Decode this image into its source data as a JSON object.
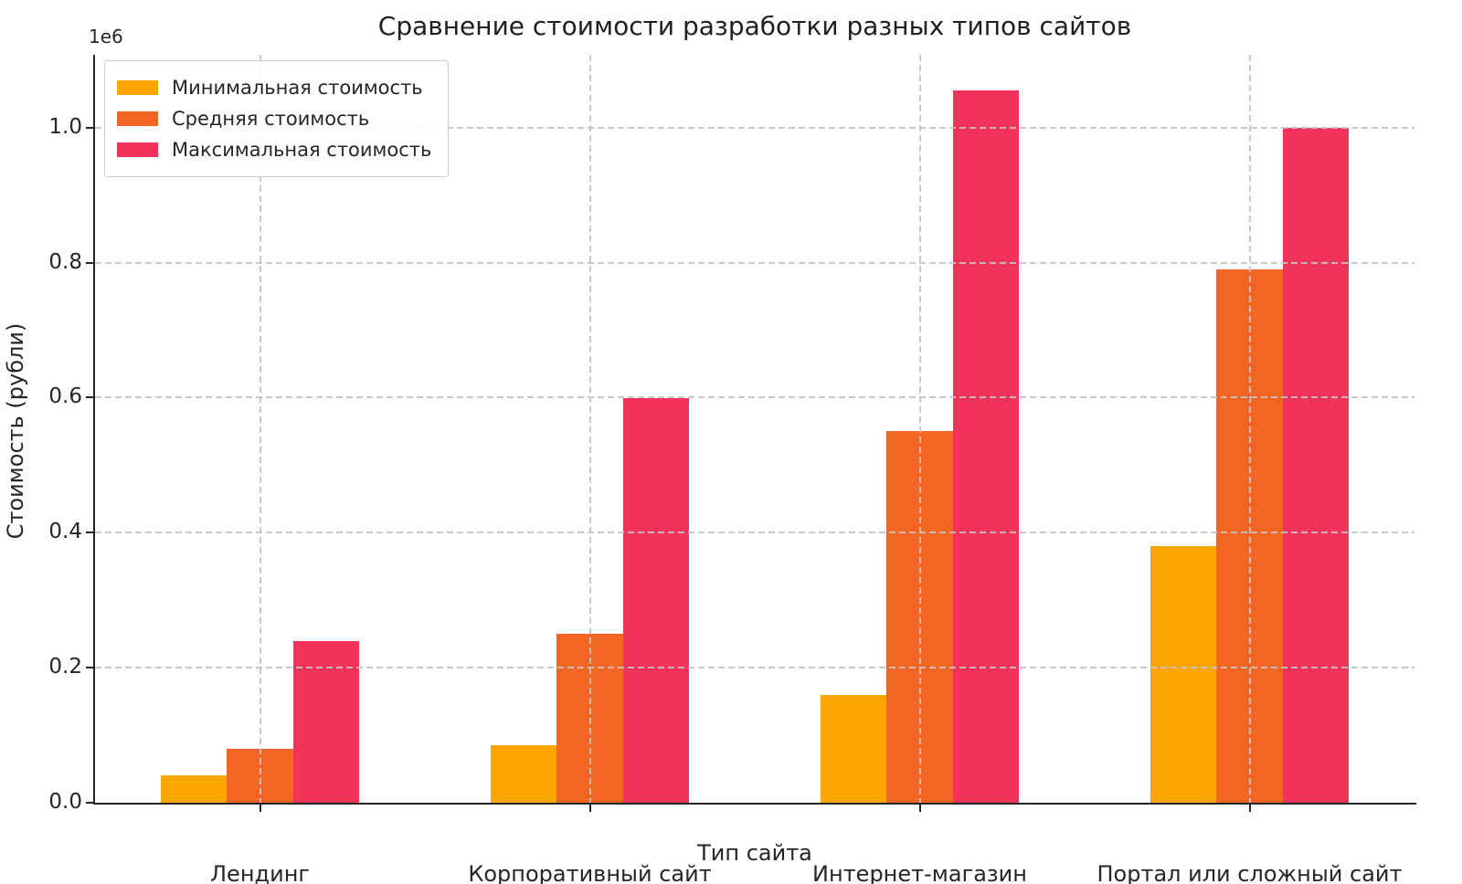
{
  "chart_data": {
    "type": "bar",
    "title": "Сравнение стоимости разработки разных типов сайтов",
    "xlabel": "Тип сайта",
    "ylabel": "Стоимость (рубли)",
    "y_offset_text": "1e6",
    "categories": [
      "Лендинг",
      "Корпоративный сайт",
      "Интернет-магазин",
      "Портал или сложный сайт"
    ],
    "series": [
      {
        "key": "min",
        "name": "Минимальная стоимость",
        "color": "#FFA500",
        "values": [
          40000,
          85000,
          160000,
          380000
        ]
      },
      {
        "key": "avg",
        "name": "Средняя стоимость",
        "color": "#F26522",
        "values": [
          80000,
          250000,
          550000,
          790000
        ]
      },
      {
        "key": "max",
        "name": "Максимальная стоимость",
        "color": "#F3335A",
        "values": [
          240000,
          600000,
          1055000,
          1000000
        ]
      }
    ],
    "ytick_values": [
      0,
      200000,
      400000,
      600000,
      800000,
      1000000
    ],
    "ytick_labels": [
      "0.0",
      "0.2",
      "0.4",
      "0.6",
      "0.8",
      "1.0"
    ],
    "ylim": [
      0,
      1108000
    ],
    "grid": "both, dashed, light-gray, drawn above bars",
    "legend_position": "upper-left",
    "bar_group_width_fraction": 0.6,
    "bar_width_fraction": 0.2
  }
}
